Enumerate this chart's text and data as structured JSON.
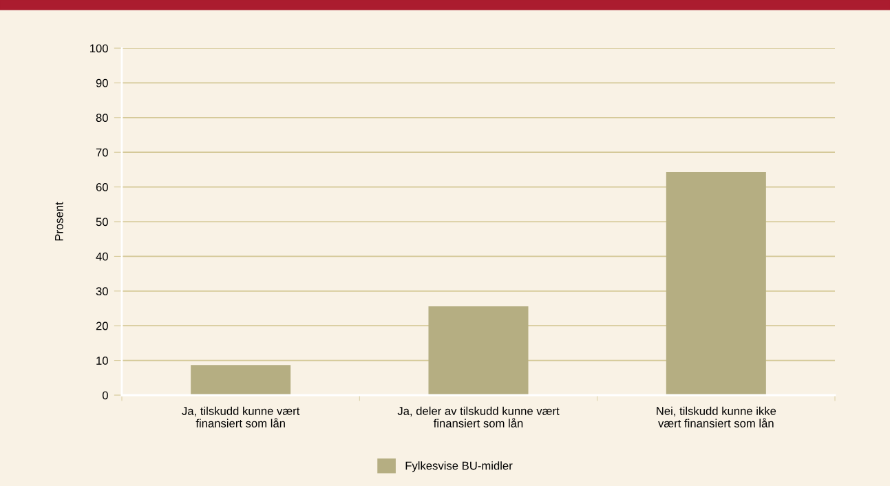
{
  "chart_data": {
    "type": "bar",
    "categories": [
      "Ja, tilskudd kunne vært\nfinansiert som lån",
      "Ja, deler av tilskudd kunne vært\nfinansiert som lån",
      "Nei, tilskudd kunne ikke\nvært finansiert som lån"
    ],
    "series": [
      {
        "name": "Fylkesvise BU-midler",
        "color": "#b5ae82",
        "values": [
          8.7,
          25.6,
          64.3
        ]
      }
    ],
    "ylabel": "Prosent",
    "ylim": [
      0,
      100
    ],
    "yticks": [
      0,
      10,
      20,
      30,
      40,
      50,
      60,
      70,
      80,
      90,
      100
    ],
    "grid": "y",
    "legend": "bottom"
  }
}
